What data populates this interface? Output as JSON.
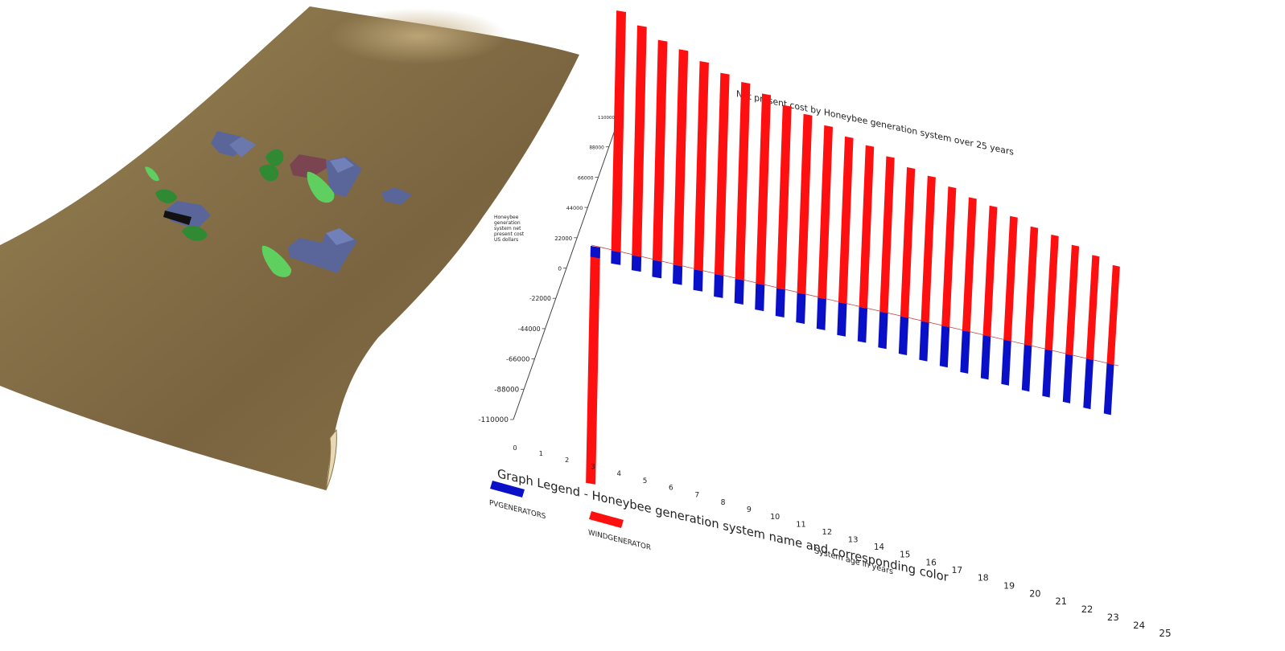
{
  "scene": {
    "terrain_color": "#8b7446",
    "building_color": "#5a6699",
    "building_red_color": "#7a4550",
    "tree_dark_color": "#2f8a33",
    "tree_light_color": "#5fd060"
  },
  "chart_data": {
    "type": "bar",
    "title": "Net present cost by Honeybee generation system over 25 years",
    "ylabel": [
      "Honeybee",
      "generation",
      "system net",
      "present cost",
      "US dollars"
    ],
    "xlabel": "System age in years",
    "y_ticks": [
      "110000",
      "88000",
      "66000",
      "44000",
      "22000",
      "0",
      "-22000",
      "-44000",
      "-66000",
      "-88000",
      "-110000"
    ],
    "x_ticks": [
      "0",
      "1",
      "2",
      "3",
      "4",
      "5",
      "6",
      "7",
      "8",
      "9",
      "10",
      "11",
      "12",
      "13",
      "14",
      "15",
      "16",
      "17",
      "18",
      "19",
      "20",
      "21",
      "22",
      "23",
      "24",
      "25"
    ],
    "ylim": [
      -110000,
      110000
    ],
    "categories": [
      0,
      1,
      2,
      3,
      4,
      5,
      6,
      7,
      8,
      9,
      10,
      11,
      12,
      13,
      14,
      15,
      16,
      17,
      18,
      19,
      20,
      21,
      22,
      23,
      24,
      25
    ],
    "series": [
      {
        "name": "PVGENERATORS",
        "color": "#0a10c8",
        "values": [
          -4000,
          -4800,
          -5600,
          -6400,
          -7200,
          -8000,
          -8800,
          -9600,
          -10400,
          -11200,
          -12000,
          -12800,
          -13600,
          -14400,
          -15200,
          -16000,
          -16800,
          -17600,
          -18400,
          -19200,
          -20000,
          -20800,
          -21600,
          -22400,
          -23200,
          -24000
        ]
      },
      {
        "name": "WINDGENERATOR",
        "color": "#ff1010",
        "values": [
          -88000,
          90000,
          87000,
          84000,
          83000,
          81000,
          79000,
          78000,
          76000,
          74000,
          73000,
          71000,
          69000,
          68000,
          66000,
          64000,
          63000,
          61000,
          59000,
          58000,
          56000,
          54000,
          53000,
          51000,
          49000,
          47000
        ]
      }
    ],
    "legend": {
      "title": "Graph Legend - Honeybee generation system name and corresponding color",
      "items": [
        {
          "label": "PVGENERATORS",
          "color": "#0a10c8"
        },
        {
          "label": "WINDGENERATOR",
          "color": "#ff1010"
        }
      ]
    }
  }
}
